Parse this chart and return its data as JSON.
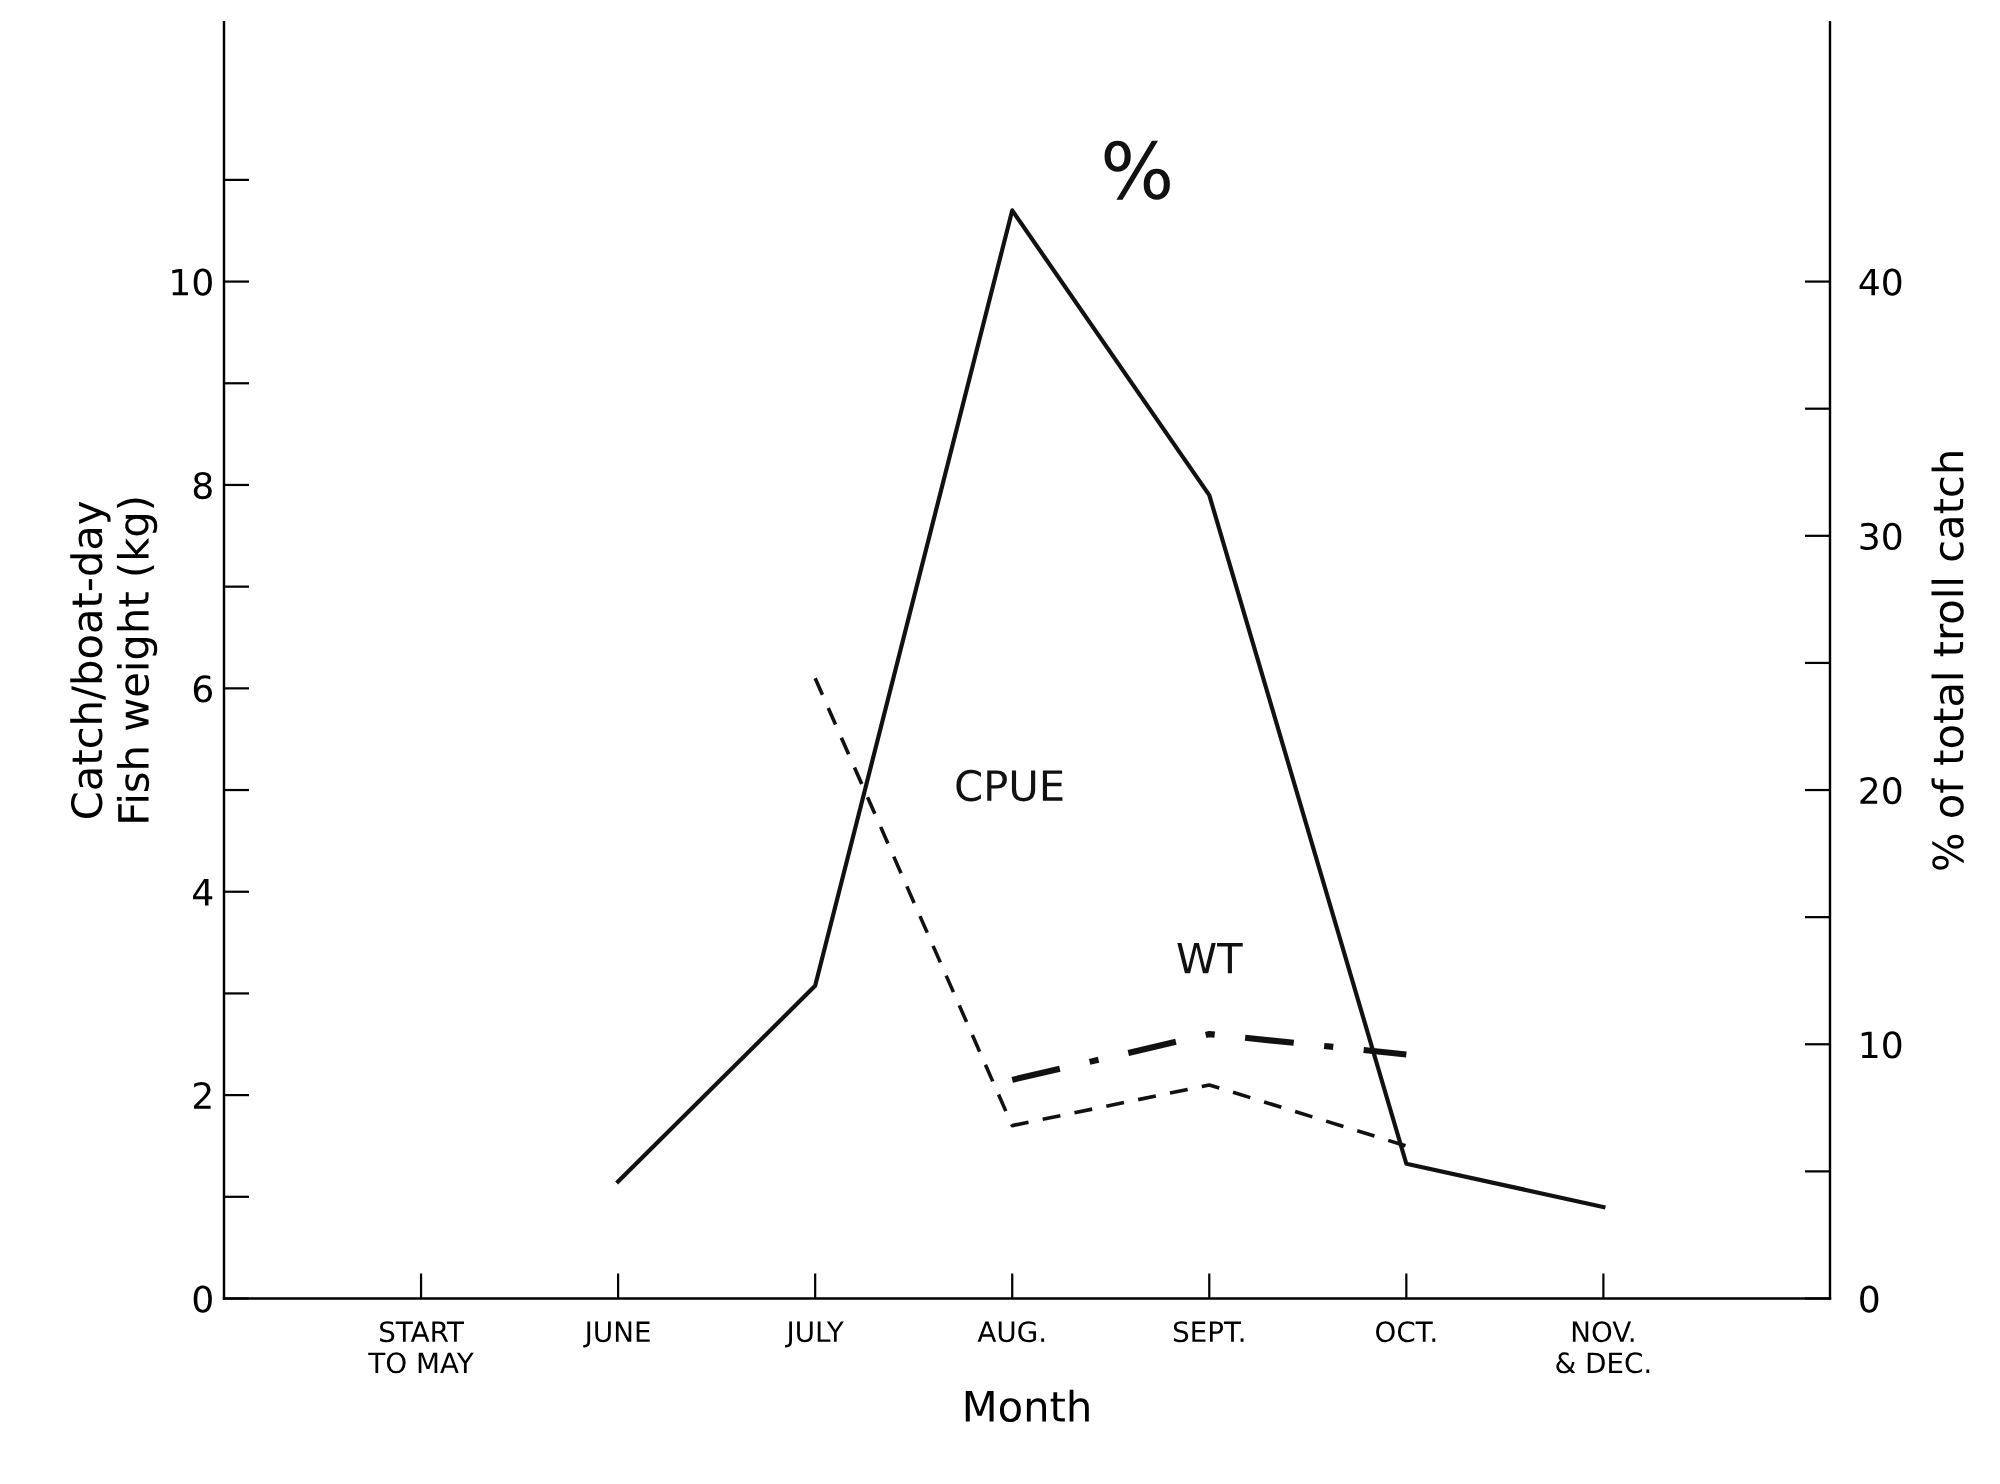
{
  "chart_data": {
    "type": "line",
    "xlabel": "Month",
    "ylabel": "Catch/boat-day\nFish weight (kg)",
    "y2label": "% of total troll catch",
    "categories": [
      "START\nTO MAY",
      "JUNE",
      "JULY",
      "AUG.",
      "SEPT.",
      "OCT.",
      "NOV.\n& DEC."
    ],
    "ylim": [
      0,
      12.55
    ],
    "yticks": [
      0,
      {
        "value": 1,
        "label": null
      },
      2,
      {
        "value": 3,
        "label": null
      },
      4,
      {
        "value": 5,
        "label": null
      },
      6,
      {
        "value": 7,
        "label": null
      },
      8,
      {
        "value": 9,
        "label": null
      },
      10,
      {
        "value": 11,
        "label": null
      }
    ],
    "y2lim": [
      0,
      50.2
    ],
    "y2ticks": [
      0,
      {
        "value": 5,
        "label": null
      },
      10,
      {
        "value": 15,
        "label": null
      },
      20,
      {
        "value": 25,
        "label": null
      },
      30,
      {
        "value": 35,
        "label": null
      },
      40
    ],
    "grid": false,
    "marker": "none",
    "series": [
      {
        "name": "%",
        "color": "#111111",
        "line_style": "solid",
        "axis": "y2",
        "values": [
          null,
          4.6,
          12.3,
          42.8,
          31.6,
          5.3,
          3.6
        ]
      },
      {
        "name": "CPUE",
        "color": "#111111",
        "line_style": "dashed",
        "axis": "y",
        "values": [
          null,
          null,
          6.1,
          1.7,
          2.1,
          1.5,
          null
        ]
      },
      {
        "name": "WT",
        "color": "#111111",
        "line_style": "dashdot",
        "axis": "y",
        "values": [
          null,
          null,
          null,
          2.15,
          2.6,
          2.4,
          null
        ]
      }
    ]
  }
}
